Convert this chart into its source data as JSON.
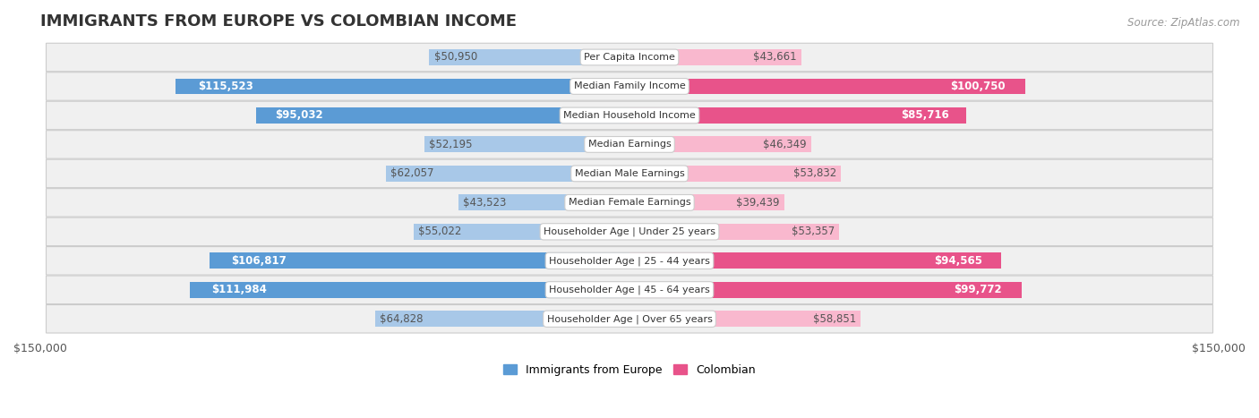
{
  "title": "IMMIGRANTS FROM EUROPE VS COLOMBIAN INCOME",
  "source": "Source: ZipAtlas.com",
  "categories": [
    "Per Capita Income",
    "Median Family Income",
    "Median Household Income",
    "Median Earnings",
    "Median Male Earnings",
    "Median Female Earnings",
    "Householder Age | Under 25 years",
    "Householder Age | 25 - 44 years",
    "Householder Age | 45 - 64 years",
    "Householder Age | Over 65 years"
  ],
  "europe_values": [
    50950,
    115523,
    95032,
    52195,
    62057,
    43523,
    55022,
    106817,
    111984,
    64828
  ],
  "colombian_values": [
    43661,
    100750,
    85716,
    46349,
    53832,
    39439,
    53357,
    94565,
    99772,
    58851
  ],
  "europe_color_light": "#a8c8e8",
  "europe_color_dark": "#5b9bd5",
  "colombian_color_light": "#f9b8ce",
  "colombian_color_dark": "#e8538a",
  "white_label_threshold": 75000,
  "max_value": 150000,
  "background_color": "#ffffff",
  "row_bg_color": "#f0f0f0",
  "bar_height": 0.55,
  "label_fontsize": 8.5,
  "title_fontsize": 13,
  "legend_fontsize": 9,
  "axis_label_fontsize": 9,
  "category_fontsize": 8.0,
  "title_color": "#333333",
  "label_dark_color": "#555555",
  "source_color": "#999999"
}
